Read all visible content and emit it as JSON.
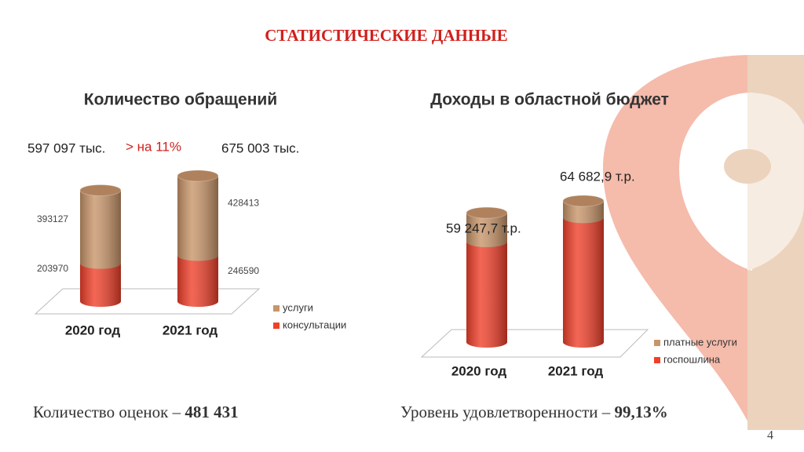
{
  "slide": {
    "title": "СТАТИСТИЧЕСКИЕ ДАННЫЕ",
    "left_note": "Количество оценок – ",
    "left_value": "481 431",
    "right_note": "Уровень удовлетворенности – ",
    "right_value": "99,13%",
    "page": "4"
  },
  "chart_data": [
    {
      "type": "bar",
      "stacked": true,
      "title": "Количество обращений",
      "categories": [
        "2020 год",
        "2021 год"
      ],
      "series": [
        {
          "name": "консультации",
          "color": "#f0402a",
          "values": [
            203970,
            246590
          ]
        },
        {
          "name": "услуги",
          "color": "#c8956a",
          "values": [
            393127,
            428413
          ]
        }
      ],
      "data_labels": true,
      "annotations": [
        "597 097 тыс.",
        "> на 11%",
        "675 003 тыс."
      ]
    },
    {
      "type": "bar",
      "stacked": true,
      "title": "Доходы в областной бюджет",
      "categories": [
        "2020 год",
        "2021 год"
      ],
      "series": [
        {
          "name": "госпошлина",
          "color": "#f0402a",
          "values": [
            46000,
            57000
          ]
        },
        {
          "name": "платные услуги",
          "color": "#c8956a",
          "values": [
            13247.7,
            7682.9
          ]
        }
      ],
      "data_labels": false,
      "annotations": [
        "59 247,7 т.р.",
        "64 682,9 т.р."
      ]
    }
  ]
}
